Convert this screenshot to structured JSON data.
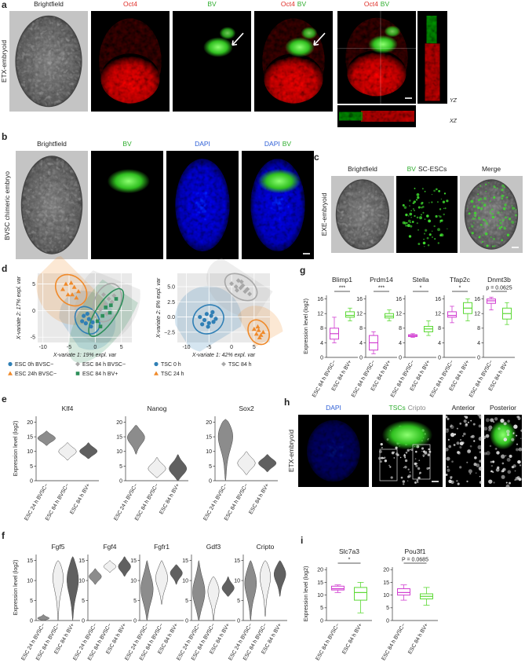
{
  "panel_a": {
    "letter": "a",
    "row_label": "ETX-embryoid",
    "image_labels": [
      [
        {
          "text": "Brightfield",
          "color": "#222222"
        }
      ],
      [
        {
          "text": "Oct4",
          "color": "#e0302a"
        }
      ],
      [
        {
          "text": "BV",
          "color": "#2fae2f"
        }
      ],
      [
        {
          "text": "Oct4",
          "color": "#e0302a"
        },
        {
          "text": "BV",
          "color": "#2fae2f"
        }
      ],
      [
        {
          "text": "Oct4",
          "color": "#e0302a"
        },
        {
          "text": "BV",
          "color": "#2fae2f"
        }
      ]
    ],
    "ortho_labels": [
      "YZ",
      "XZ"
    ]
  },
  "panel_b": {
    "letter": "b",
    "row_label": "BVSC chimeric embryo",
    "image_labels": [
      [
        {
          "text": "Brightfield",
          "color": "#222222"
        }
      ],
      [
        {
          "text": "BV",
          "color": "#2fae2f"
        }
      ],
      [
        {
          "text": "DAPI",
          "color": "#2e5fd6"
        }
      ],
      [
        {
          "text": "DAPI",
          "color": "#2e5fd6"
        },
        {
          "text": "BV",
          "color": "#2fae2f"
        }
      ]
    ]
  },
  "panel_c": {
    "letter": "c",
    "row_label": "EXE-embryoid",
    "image_labels": [
      [
        {
          "text": "Brightfield",
          "color": "#222222"
        }
      ],
      [
        {
          "text": "BV",
          "color": "#2fae2f"
        },
        {
          "text": "SC-ESCs",
          "color": "#222222"
        }
      ],
      [
        {
          "text": "Merge",
          "color": "#222222"
        }
      ]
    ]
  },
  "panel_d": {
    "letter": "d",
    "charts": [
      {
        "type": "scatter",
        "xlabel": "X-variate 1: 19% expl. var",
        "ylabel": "X-variate 2: 17% expl. var",
        "xlim": [
          -11,
          7
        ],
        "ylim": [
          -6,
          7
        ],
        "xticks": [
          -10,
          -5,
          0,
          5
        ],
        "yticks": [
          -5,
          0,
          5
        ],
        "series": [
          {
            "name": "ESC 0h BVSC−",
            "color": "#2f7fb5",
            "marker": "circle",
            "x": [
              -2.2,
              -1.8,
              -1.2,
              -0.8,
              -1.5,
              -2.5,
              -0.5
            ],
            "y": [
              -1.0,
              -2.4,
              -1.6,
              -3.0,
              -0.6,
              -2.0,
              -2.2
            ]
          },
          {
            "name": "ESC 84 h BVSC−",
            "color": "#a8a8a8",
            "marker": "diamond",
            "x": [
              1.0,
              2.0,
              2.6,
              3.2,
              1.6,
              2.2,
              3.6
            ],
            "y": [
              0.2,
              1.2,
              2.2,
              1.6,
              3.0,
              -0.6,
              2.8
            ]
          },
          {
            "name": "ESC 24h BVSC−",
            "color": "#f08a2a",
            "marker": "triangle",
            "x": [
              -6.2,
              -5.2,
              -4.6,
              -4.0,
              -3.2,
              -3.6,
              -5.6,
              -4.4
            ],
            "y": [
              4.0,
              3.0,
              5.2,
              4.4,
              3.6,
              2.4,
              5.0,
              3.0
            ]
          },
          {
            "name": "ESC 84 h BV+",
            "color": "#2c8f5a",
            "marker": "square",
            "x": [
              0.4,
              1.4,
              2.0,
              3.0,
              4.0,
              1.0,
              2.8
            ],
            "y": [
              -2.0,
              -1.0,
              0.6,
              1.0,
              2.2,
              -3.0,
              -0.4
            ]
          }
        ]
      },
      {
        "type": "scatter",
        "xlabel": "X-variate 1: 42% expl. var",
        "ylabel": "X-variate 2: 8% expl. var",
        "xlim": [
          -12,
          8.5
        ],
        "ylim": [
          -4.2,
          7.2
        ],
        "xticks": [
          -10,
          -5,
          0,
          5
        ],
        "yticks": [
          {
            "value": -2.5,
            "label": "−2.5"
          },
          {
            "value": 0,
            "label": "0.0"
          },
          {
            "value": 2.5,
            "label": "2.5"
          },
          {
            "value": 5,
            "label": "5.0"
          }
        ],
        "series": [
          {
            "name": "TSC 0 h",
            "color": "#2f7fb5",
            "marker": "circle",
            "x": [
              -7,
              -6,
              -5.5,
              -5,
              -4.5,
              -4,
              -6.5,
              -3.5,
              -5.2,
              -4.2
            ],
            "y": [
              0,
              -0.5,
              0.5,
              -1,
              0.2,
              -0.8,
              -1.2,
              -0.3,
              -1.6,
              0.8
            ]
          },
          {
            "name": "TSC 84 h",
            "color": "#a8a8a8",
            "marker": "diamond",
            "x": [
              0,
              1,
              1.5,
              2,
              2.5,
              3,
              3.5,
              4,
              2.2,
              1.2
            ],
            "y": [
              5.5,
              5,
              6,
              4.8,
              5.2,
              4.2,
              4.6,
              3.8,
              5.8,
              4.4
            ]
          },
          {
            "name": "TSC 24 h",
            "color": "#f08a2a",
            "marker": "triangle",
            "x": [
              5,
              5.5,
              6,
              6.5,
              7,
              5.8,
              6.2
            ],
            "y": [
              -2,
              -2.8,
              -2.2,
              -3,
              -2.5,
              -1.6,
              -3.4
            ]
          }
        ]
      }
    ]
  },
  "panel_e": {
    "letter": "e",
    "type": "violin",
    "ylabel": "Expression level (log2)",
    "categories": [
      "ESC 24 h BVSC−",
      "ESC 84 h BVSC−",
      "ESC 84 h BV+"
    ],
    "colors": [
      "#8c8c8c",
      "#f0f0f0",
      "#606060"
    ],
    "ylim": [
      0,
      22
    ],
    "yticks": [
      0,
      5,
      10,
      15,
      20
    ],
    "plots": [
      {
        "name": "Klf4",
        "violins": [
          {
            "min": 12,
            "median": 14.5,
            "max": 17
          },
          {
            "min": 7,
            "median": 10,
            "max": 13
          },
          {
            "min": 7.5,
            "median": 10,
            "max": 13
          }
        ]
      },
      {
        "name": "Nanog",
        "violins": [
          {
            "min": 9,
            "median": 15,
            "max": 19
          },
          {
            "min": 1,
            "median": 4,
            "max": 8
          },
          {
            "min": 0,
            "median": 4,
            "max": 9
          }
        ]
      },
      {
        "name": "Sox2",
        "violins": [
          {
            "min": 0,
            "median": 17,
            "max": 21
          },
          {
            "min": 2,
            "median": 6,
            "max": 10
          },
          {
            "min": 3,
            "median": 6,
            "max": 9
          }
        ]
      }
    ]
  },
  "panel_f": {
    "letter": "f",
    "type": "violin",
    "ylabel": "Expression level (log2)",
    "categories": [
      "ESC 24 h BVSC−",
      "ESC 84 h BVSC−",
      "ESC 84 h BV+"
    ],
    "colors": [
      "#8c8c8c",
      "#f0f0f0",
      "#606060"
    ],
    "ylim": [
      0,
      16.5
    ],
    "yticks": [
      0,
      5,
      10,
      15
    ],
    "plots": [
      {
        "name": "Fgf5",
        "violins": [
          {
            "min": 0,
            "median": 0.5,
            "max": 1.5
          },
          {
            "min": 0,
            "median": 12,
            "max": 15
          },
          {
            "min": 0,
            "median": 11,
            "max": 16
          }
        ]
      },
      {
        "name": "Fgf4",
        "violins": [
          {
            "min": 9,
            "median": 11,
            "max": 13
          },
          {
            "min": 12,
            "median": 13.5,
            "max": 15
          },
          {
            "min": 11,
            "median": 13.5,
            "max": 16
          }
        ]
      },
      {
        "name": "Fgfr1",
        "violins": [
          {
            "min": 0,
            "median": 8,
            "max": 15
          },
          {
            "min": 4,
            "median": 11,
            "max": 15
          },
          {
            "min": 9,
            "median": 12,
            "max": 14
          }
        ]
      },
      {
        "name": "Gdf3",
        "violins": [
          {
            "min": 0,
            "median": 7,
            "max": 15
          },
          {
            "min": 0,
            "median": 8,
            "max": 11
          },
          {
            "min": 6,
            "median": 8,
            "max": 11
          }
        ]
      },
      {
        "name": "Cripto",
        "violins": [
          {
            "min": 0,
            "median": 10,
            "max": 15
          },
          {
            "min": 1,
            "median": 12,
            "max": 15
          },
          {
            "min": 6,
            "median": 12,
            "max": 15
          }
        ]
      }
    ]
  },
  "panel_g": {
    "letter": "g",
    "type": "box",
    "ylabel": "Expression level (log2)",
    "categories": [
      "ESC 84 h BVSC−",
      "ESC 84 h BV+"
    ],
    "colors": [
      "#d13fd1",
      "#5cd935"
    ],
    "ylim": [
      0,
      17
    ],
    "yticks": [
      0,
      4,
      8,
      12,
      16
    ],
    "plots": [
      {
        "name": "Blimp1",
        "significance": "***",
        "boxes": [
          {
            "min": 4,
            "q1": 5,
            "median": 6.5,
            "q3": 8,
            "max": 11
          },
          {
            "min": 10,
            "q1": 11,
            "median": 11.5,
            "q3": 12.5,
            "max": 13.5
          }
        ]
      },
      {
        "name": "Prdm14",
        "significance": "***",
        "boxes": [
          {
            "min": 1,
            "q1": 2,
            "median": 4,
            "q3": 6,
            "max": 7
          },
          {
            "min": 10,
            "q1": 10.8,
            "median": 11.3,
            "q3": 12,
            "max": 13
          }
        ]
      },
      {
        "name": "Stella",
        "significance": "*",
        "boxes": [
          {
            "min": 5.5,
            "q1": 5.7,
            "median": 6,
            "q3": 6.2,
            "max": 6.5
          },
          {
            "min": 6,
            "q1": 7,
            "median": 7.8,
            "q3": 8.5,
            "max": 10
          }
        ]
      },
      {
        "name": "Tfap2c",
        "significance": "*",
        "boxes": [
          {
            "min": 9.5,
            "q1": 11,
            "median": 11.5,
            "q3": 12.5,
            "max": 14
          },
          {
            "min": 10,
            "q1": 12,
            "median": 13.5,
            "q3": 15,
            "max": 16
          }
        ]
      },
      {
        "name": "Dnmt3b",
        "significance": "p = 0.0625",
        "boxes": [
          {
            "min": 13,
            "q1": 14.8,
            "median": 15.5,
            "q3": 16,
            "max": 16.5
          },
          {
            "min": 9,
            "q1": 10.5,
            "median": 12,
            "q3": 13.5,
            "max": 15
          }
        ]
      }
    ]
  },
  "panel_h": {
    "letter": "h",
    "row_label": "ETX-embryoid",
    "image_labels": [
      [
        {
          "text": "DAPI",
          "color": "#2e5fd6"
        }
      ],
      [
        {
          "text": "TSCs",
          "color": "#2fae2f"
        },
        {
          "text": "Cripto",
          "color": "#888888"
        }
      ],
      [
        {
          "text": "Anterior",
          "color": "#222222"
        }
      ],
      [
        {
          "text": "Posterior",
          "color": "#222222"
        }
      ]
    ]
  },
  "panel_i": {
    "letter": "i",
    "type": "box",
    "ylabel": "Expression level (log2)",
    "categories": [
      "ESC 84 h BVSC−",
      "ESC 84 h BV+"
    ],
    "colors": [
      "#d13fd1",
      "#5cd935"
    ],
    "ylim": [
      0,
      21
    ],
    "yticks": [
      0,
      5,
      10,
      15,
      20
    ],
    "plots": [
      {
        "name": "Slc7a3",
        "significance": "*",
        "boxes": [
          {
            "min": 11,
            "q1": 12,
            "median": 12.5,
            "q3": 13.5,
            "max": 14
          },
          {
            "min": 3,
            "q1": 8,
            "median": 11,
            "q3": 13,
            "max": 15
          }
        ]
      },
      {
        "name": "Pou3f1",
        "significance": "P = 0.0685",
        "boxes": [
          {
            "min": 8,
            "q1": 10,
            "median": 11,
            "q3": 12.5,
            "max": 14
          },
          {
            "min": 6,
            "q1": 8.5,
            "median": 9.5,
            "q3": 10.5,
            "max": 13
          }
        ]
      }
    ]
  }
}
